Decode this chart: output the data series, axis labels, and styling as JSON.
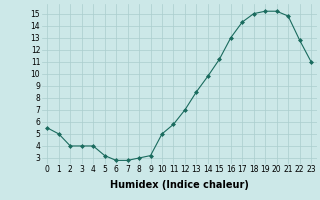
{
  "xlabel": "Humidex (Indice chaleur)",
  "ylabel": "",
  "x_values": [
    0,
    1,
    2,
    3,
    4,
    5,
    6,
    7,
    8,
    9,
    10,
    11,
    12,
    13,
    14,
    15,
    16,
    17,
    18,
    19,
    20,
    21,
    22,
    23
  ],
  "y_values": [
    5.5,
    5.0,
    4.0,
    4.0,
    4.0,
    3.2,
    2.8,
    2.8,
    3.0,
    3.2,
    5.0,
    5.8,
    7.0,
    8.5,
    9.8,
    11.2,
    13.0,
    14.3,
    15.0,
    15.2,
    15.2,
    14.8,
    12.8,
    11.0
  ],
  "line_color": "#1a6b5e",
  "marker": "D",
  "marker_size": 2.0,
  "background_color": "#cce8e8",
  "grid_color": "#aacece",
  "ylim": [
    2.5,
    15.8
  ],
  "yticks": [
    3,
    4,
    5,
    6,
    7,
    8,
    9,
    10,
    11,
    12,
    13,
    14,
    15
  ],
  "xticks": [
    0,
    1,
    2,
    3,
    4,
    5,
    6,
    7,
    8,
    9,
    10,
    11,
    12,
    13,
    14,
    15,
    16,
    17,
    18,
    19,
    20,
    21,
    22,
    23
  ],
  "tick_label_fontsize": 5.5,
  "xlabel_fontsize": 7.0
}
